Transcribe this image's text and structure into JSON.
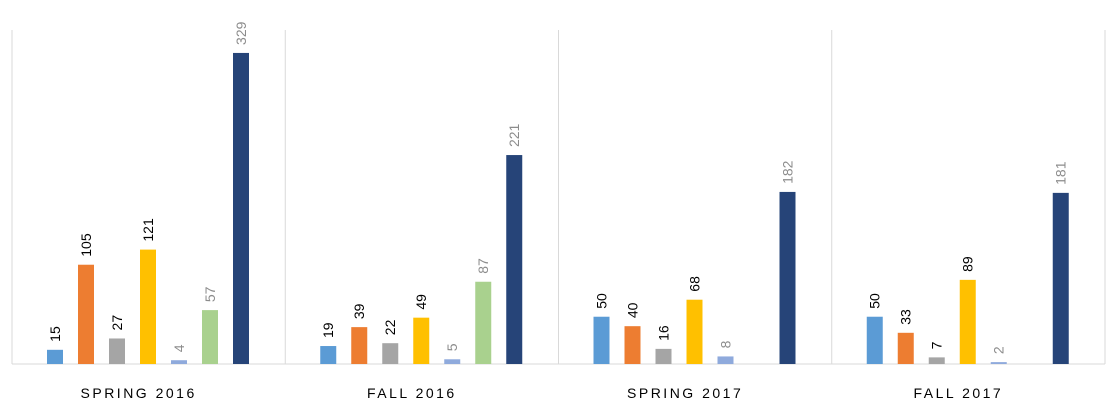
{
  "chart_data": {
    "type": "bar",
    "categories": [
      "SPRING 2016",
      "FALL 2016",
      "SPRING 2017",
      "FALL 2017"
    ],
    "series": [
      {
        "color": "#5b9bd5",
        "label_color": "#000000",
        "values": [
          15,
          19,
          50,
          50
        ]
      },
      {
        "color": "#ed7d31",
        "label_color": "#000000",
        "values": [
          105,
          39,
          40,
          33
        ]
      },
      {
        "color": "#a5a5a5",
        "label_color": "#000000",
        "values": [
          27,
          22,
          16,
          7
        ]
      },
      {
        "color": "#ffc000",
        "label_color": "#000000",
        "values": [
          121,
          49,
          68,
          89
        ]
      },
      {
        "color": "#8faadc",
        "label_color": "#8c8c8c",
        "values": [
          4,
          5,
          8,
          2
        ]
      },
      {
        "color": "#a9d18e",
        "label_color": "#8c8c8c",
        "values": [
          57,
          87,
          null,
          null
        ]
      },
      {
        "color": "#264478",
        "label_color": "#8c8c8c",
        "values": [
          329,
          221,
          182,
          181
        ]
      }
    ],
    "ylim": [
      0,
      385
    ]
  }
}
